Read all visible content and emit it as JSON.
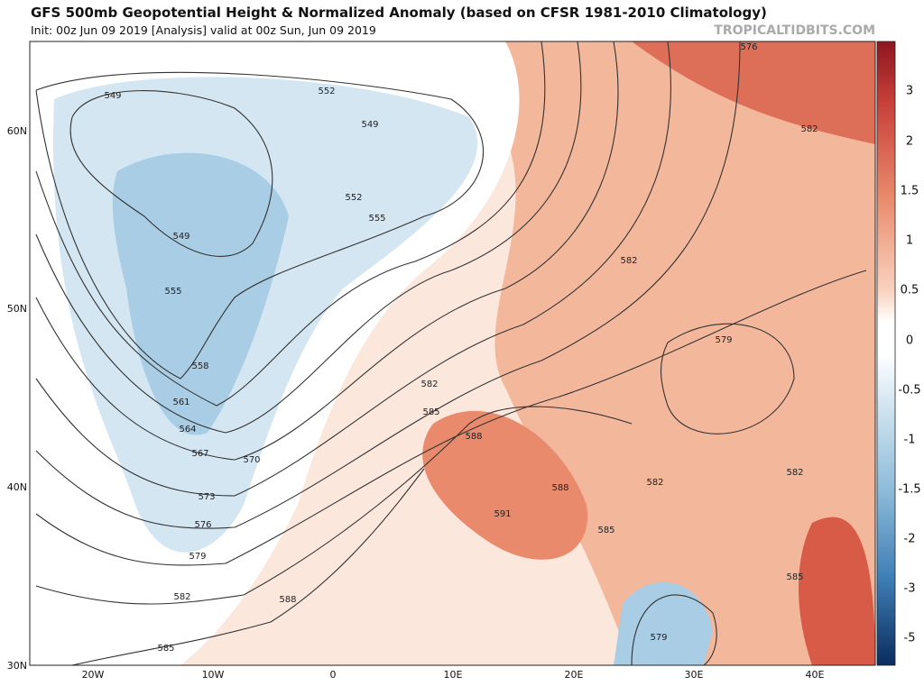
{
  "header": {
    "title": "GFS 500mb Geopotential Height & Normalized Anomaly (based on CFSR 1981-2010 Climatology)",
    "subtitle": "Init: 00z Jun 09 2019   [Analysis]   valid at 00z Sun, Jun 09 2019",
    "credit": "TROPICALTIDBITS.COM"
  },
  "map": {
    "lat_labels": [
      "60N",
      "50N",
      "40N",
      "30N"
    ],
    "lon_labels": [
      "20W",
      "10W",
      "0",
      "10E",
      "20E",
      "30E",
      "40E"
    ],
    "contour_labels": [
      549,
      552,
      549,
      549,
      552,
      555,
      555,
      558,
      561,
      564,
      567,
      570,
      573,
      576,
      579,
      582,
      585,
      588,
      582,
      585,
      588,
      591,
      588,
      585,
      582,
      582,
      579,
      582,
      585,
      579,
      576,
      582
    ]
  },
  "colorbar": {
    "labels": [
      3,
      2,
      1.5,
      1,
      0.5,
      0,
      -0.5,
      -1,
      -1.5,
      -2,
      -3,
      -5
    ]
  }
}
